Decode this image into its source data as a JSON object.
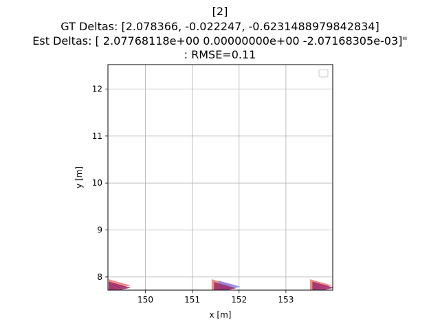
{
  "chart_data": {
    "type": "scatter",
    "title_lines": [
      "[2]",
      "GT Deltas: [2.078366, -0.022247, -0.6231488979842834]",
      "Est Deltas: [ 2.07768118e+00  0.00000000e+00 -2.07168305e-03]\"",
      ": RMSE=0.11"
    ],
    "xlabel": "x [m]",
    "ylabel": "y [m]",
    "xlim": [
      149.2,
      154.0
    ],
    "ylim": [
      7.72,
      12.52
    ],
    "xticks": [
      150,
      151,
      152,
      153
    ],
    "yticks": [
      8,
      9,
      10,
      11,
      12
    ],
    "grid": true,
    "legend": {
      "placement": "top-right",
      "entries": []
    },
    "series": [
      {
        "marker": "arrow-head",
        "color": "#e8736c",
        "points": [
          {
            "x": 149.45,
            "y": 7.85
          },
          {
            "x": 151.65,
            "y": 7.85
          },
          {
            "x": 153.75,
            "y": 7.85
          }
        ]
      },
      {
        "marker": "arrow-head",
        "color": "#7f7fe6",
        "points": [
          {
            "x": 151.8,
            "y": 7.82
          }
        ]
      },
      {
        "marker": "arrow-head",
        "color": "#a0306e",
        "points": [
          {
            "x": 149.45,
            "y": 7.8
          },
          {
            "x": 151.7,
            "y": 7.79
          },
          {
            "x": 153.8,
            "y": 7.8
          }
        ]
      }
    ]
  }
}
